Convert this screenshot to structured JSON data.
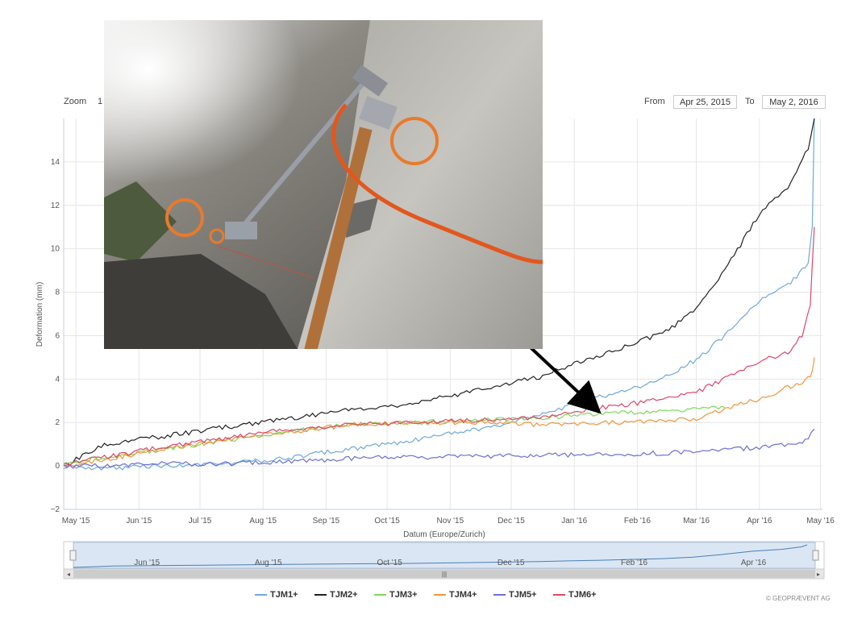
{
  "toolbar": {
    "zoom_label": "Zoom",
    "zoom_value": "1",
    "from_label": "From",
    "from_value": "Apr 25, 2015",
    "to_label": "To",
    "to_value": "May 2, 2016"
  },
  "credits": "© GEOPRÆVENT AG",
  "chart_data": {
    "type": "line",
    "title": "",
    "xlabel": "Datum (Europe/Zurich)",
    "ylabel": "Deformation (mm)",
    "xlim": [
      "2015-04-25",
      "2016-05-02"
    ],
    "ylim": [
      -2,
      16
    ],
    "yticks": [
      -2,
      0,
      2,
      4,
      6,
      8,
      10,
      12,
      14
    ],
    "xticks": [
      "May '15",
      "Jun '15",
      "Jul '15",
      "Aug '15",
      "Sep '15",
      "Oct '15",
      "Nov '15",
      "Dec '15",
      "Jan '16",
      "Feb '16",
      "Mar '16",
      "Apr '16",
      "May '16"
    ],
    "xtick_dates": [
      "2015-05-01",
      "2015-06-01",
      "2015-07-01",
      "2015-08-01",
      "2015-09-01",
      "2015-10-01",
      "2015-11-01",
      "2015-12-01",
      "2016-01-01",
      "2016-02-01",
      "2016-03-01",
      "2016-04-01",
      "2016-05-01"
    ],
    "grid": true,
    "legend_position": "bottom",
    "navigator_labels": [
      "Jun '15",
      "Aug '15",
      "Oct '15",
      "Dec '15",
      "Feb '16",
      "Apr '16"
    ],
    "series": [
      {
        "name": "TJM1+",
        "color": "#6fa8dc",
        "x": [
          "2015-04-25",
          "2015-05-15",
          "2015-06-15",
          "2015-07-15",
          "2015-08-15",
          "2015-09-15",
          "2015-10-15",
          "2015-11-15",
          "2015-12-15",
          "2016-01-01",
          "2016-01-15",
          "2016-02-01",
          "2016-02-15",
          "2016-03-01",
          "2016-03-15",
          "2016-04-01",
          "2016-04-15",
          "2016-04-25",
          "2016-04-27",
          "2016-04-28"
        ],
        "y": [
          0.0,
          -0.1,
          0.0,
          0.1,
          0.4,
          0.8,
          1.2,
          1.7,
          2.3,
          2.9,
          3.2,
          3.6,
          4.1,
          4.9,
          6.0,
          7.6,
          8.3,
          9.3,
          11.0,
          16.0
        ]
      },
      {
        "name": "TJM2+",
        "color": "#222222",
        "x": [
          "2015-04-25",
          "2015-05-15",
          "2015-06-15",
          "2015-07-15",
          "2015-08-15",
          "2015-09-15",
          "2015-10-15",
          "2015-11-15",
          "2015-12-15",
          "2016-01-01",
          "2016-01-15",
          "2016-02-01",
          "2016-02-15",
          "2016-03-01",
          "2016-03-15",
          "2016-04-01",
          "2016-04-15",
          "2016-04-25",
          "2016-04-28"
        ],
        "y": [
          0.0,
          1.0,
          1.4,
          1.8,
          2.2,
          2.6,
          2.9,
          3.5,
          4.1,
          4.7,
          5.1,
          5.7,
          6.2,
          7.2,
          9.0,
          11.6,
          12.8,
          14.6,
          16.0
        ]
      },
      {
        "name": "TJM3+",
        "color": "#7ed957",
        "x": [
          "2015-04-25",
          "2015-05-15",
          "2015-06-15",
          "2015-07-15",
          "2015-08-15",
          "2015-09-15",
          "2015-10-15",
          "2015-11-15",
          "2015-12-15",
          "2016-01-01",
          "2016-01-15",
          "2016-02-01",
          "2016-02-15",
          "2016-03-01",
          "2016-03-15"
        ],
        "y": [
          0.1,
          0.4,
          0.8,
          1.2,
          1.6,
          1.9,
          2.0,
          2.1,
          2.2,
          2.3,
          2.4,
          2.5,
          2.5,
          2.6,
          2.7
        ]
      },
      {
        "name": "TJM4+",
        "color": "#f0963c",
        "x": [
          "2015-04-25",
          "2015-05-15",
          "2015-06-15",
          "2015-07-15",
          "2015-08-15",
          "2015-09-15",
          "2015-10-15",
          "2015-11-15",
          "2015-12-15",
          "2016-01-01",
          "2016-01-15",
          "2016-02-01",
          "2016-02-15",
          "2016-03-01",
          "2016-03-15",
          "2016-04-01",
          "2016-04-15",
          "2016-04-25",
          "2016-04-27",
          "2016-04-28"
        ],
        "y": [
          0.0,
          0.3,
          0.8,
          1.2,
          1.6,
          1.9,
          2.0,
          2.0,
          1.9,
          1.9,
          2.0,
          2.0,
          2.1,
          2.2,
          2.6,
          3.1,
          3.6,
          4.0,
          4.3,
          5.0
        ]
      },
      {
        "name": "TJM5+",
        "color": "#6b6fd6",
        "x": [
          "2015-04-25",
          "2015-05-15",
          "2015-06-15",
          "2015-07-15",
          "2015-08-15",
          "2015-09-15",
          "2015-10-15",
          "2015-11-15",
          "2015-12-15",
          "2016-01-01",
          "2016-01-15",
          "2016-02-01",
          "2016-02-15",
          "2016-03-01",
          "2016-03-15",
          "2016-04-01",
          "2016-04-15",
          "2016-04-25",
          "2016-04-28"
        ],
        "y": [
          0.0,
          0.0,
          0.1,
          0.1,
          0.2,
          0.35,
          0.4,
          0.45,
          0.5,
          0.5,
          0.5,
          0.55,
          0.6,
          0.65,
          0.75,
          0.85,
          0.95,
          1.2,
          1.7
        ]
      },
      {
        "name": "TJM6+",
        "color": "#e0466b",
        "x": [
          "2015-04-25",
          "2015-05-15",
          "2015-06-15",
          "2015-07-15",
          "2015-08-15",
          "2015-09-15",
          "2015-10-15",
          "2015-11-15",
          "2015-12-15",
          "2016-01-01",
          "2016-01-15",
          "2016-02-01",
          "2016-02-15",
          "2016-03-01",
          "2016-03-15",
          "2016-04-01",
          "2016-04-15",
          "2016-04-22",
          "2016-04-26",
          "2016-04-28"
        ],
        "y": [
          0.1,
          0.4,
          0.9,
          1.3,
          1.7,
          1.9,
          2.0,
          2.1,
          2.2,
          2.5,
          2.7,
          2.9,
          3.1,
          3.4,
          4.0,
          4.8,
          5.2,
          6.0,
          7.5,
          11.0
        ]
      }
    ],
    "annotation": {
      "type": "arrow",
      "from": [
        "2015-09-07",
        13.75
      ],
      "to": [
        "2016-01-12",
        2.6
      ]
    }
  }
}
